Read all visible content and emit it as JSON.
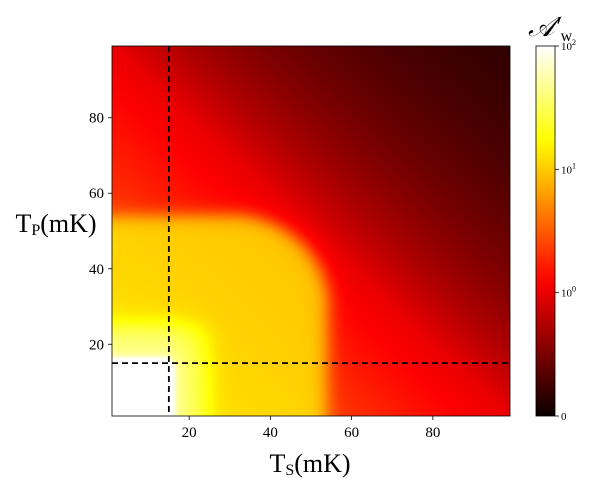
{
  "chart_data": {
    "type": "heatmap",
    "title": "",
    "xlabel": {
      "main": "T",
      "sub": "S",
      "tail": "(mK)"
    },
    "ylabel": {
      "main": "T",
      "sub": "P",
      "tail": "(mK)"
    },
    "xlim": [
      1,
      99
    ],
    "ylim": [
      1,
      99
    ],
    "x_ticks": [
      20,
      40,
      60,
      80
    ],
    "y_ticks": [
      20,
      40,
      60,
      80
    ],
    "x_tick_labels": [
      "20",
      "40",
      "60",
      "80"
    ],
    "y_tick_labels": [
      "20",
      "40",
      "60",
      "80"
    ],
    "colormap": "hot",
    "colors": {
      "hot_black": "#0a0000",
      "hot_red": "#e60000",
      "hot_orange": "#ff7a00",
      "hot_yellow": "#ffff00",
      "hot_white": "#ffffff"
    },
    "colorbar": {
      "label": {
        "main": "𝒜′",
        "sub": "w"
      },
      "scale": "symlog",
      "range": [
        0,
        100
      ],
      "linthresh": 1,
      "ticks": [
        {
          "value": 0,
          "label_base": "0",
          "label_exp": ""
        },
        {
          "value": 1,
          "label_base": "10",
          "label_exp": "0"
        },
        {
          "value": 10,
          "label_base": "10",
          "label_exp": "1"
        },
        {
          "value": 100,
          "label_base": "10",
          "label_exp": "2"
        }
      ]
    },
    "reference_lines": [
      {
        "orientation": "vertical",
        "x": 15,
        "style": "dashed",
        "color": "#000000"
      },
      {
        "orientation": "horizontal",
        "y": 15,
        "style": "dashed",
        "color": "#000000"
      }
    ],
    "regions": [
      {
        "x_range": [
          1,
          15
        ],
        "y_range": [
          1,
          15
        ],
        "value_level": "above 100"
      },
      {
        "x_range": [
          15,
          25
        ],
        "y_range": [
          1,
          25
        ],
        "value_level": "about 30"
      },
      {
        "x_range": [
          1,
          53
        ],
        "y_range": [
          1,
          53
        ],
        "value_level": "about 8"
      },
      {
        "x_range": [
          53,
          99
        ],
        "y_range": [
          53,
          99
        ],
        "value_level": "below 1"
      }
    ]
  }
}
